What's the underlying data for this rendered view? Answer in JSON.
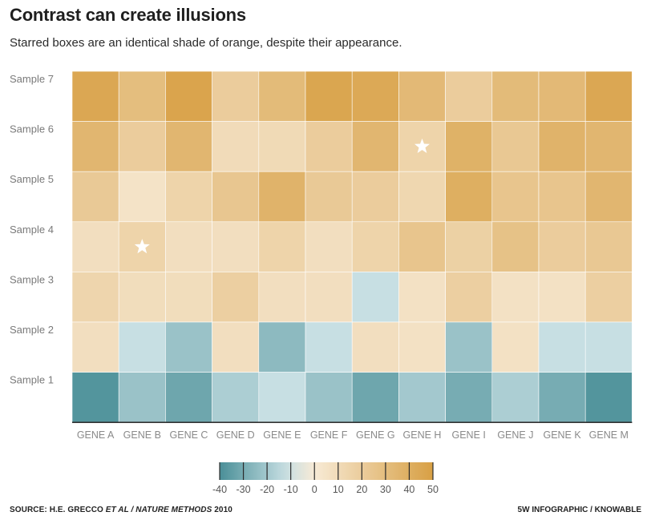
{
  "title": "Contrast can create illusions",
  "subtitle": "Starred boxes are an identical shade of orange, despite their appearance.",
  "source": {
    "prefix": "SOURCE: H.E. GRECCO ",
    "italic": "ET AL / NATURE METHODS",
    "suffix": " 2010"
  },
  "credit": "5W INFOGRAPHIC / KNOWABLE",
  "chart_data": {
    "type": "heatmap",
    "title": "Contrast can create illusions",
    "x_categories": [
      "GENE A",
      "GENE B",
      "GENE C",
      "GENE D",
      "GENE E",
      "GENE F",
      "GENE G",
      "GENE H",
      "GENE I",
      "GENE J",
      "GENE K",
      "GENE M"
    ],
    "y_categories": [
      "Sample 7",
      "Sample 6",
      "Sample 5",
      "Sample 4",
      "Sample 3",
      "Sample 2",
      "Sample 1"
    ],
    "values": [
      [
        45,
        30,
        47,
        20,
        32,
        46,
        44,
        33,
        20,
        32,
        33,
        45
      ],
      [
        35,
        20,
        35,
        10,
        11,
        20,
        35,
        15,
        38,
        23,
        37,
        35
      ],
      [
        22,
        5,
        15,
        24,
        37,
        22,
        20,
        13,
        40,
        25,
        25,
        35
      ],
      [
        8,
        15,
        8,
        8,
        15,
        8,
        15,
        25,
        17,
        27,
        20,
        23
      ],
      [
        14,
        9,
        9,
        18,
        8,
        8,
        -12,
        6,
        18,
        6,
        6,
        18
      ],
      [
        8,
        -12,
        -22,
        8,
        -25,
        -12,
        8,
        6,
        -22,
        6,
        -12,
        -12
      ],
      [
        -38,
        -22,
        -32,
        -18,
        -12,
        -22,
        -32,
        -20,
        -30,
        -18,
        -30,
        -38
      ]
    ],
    "starred_cells": [
      {
        "sample": "Sample 6",
        "gene": "GENE H",
        "value": 15
      },
      {
        "sample": "Sample 4",
        "gene": "GENE B",
        "value": 15
      }
    ],
    "colorbar": {
      "min": -40,
      "max": 50,
      "ticks": [
        -40,
        -30,
        -20,
        -10,
        0,
        10,
        20,
        30,
        40,
        50
      ],
      "tick_labels": [
        "-40",
        "-30",
        "-20",
        "-10",
        "0",
        "10",
        "20",
        "30",
        "40",
        "50"
      ]
    },
    "colors": {
      "low": "#4a8f98",
      "mid_cool": "#c7dfe3",
      "neutral": "#f7ead6",
      "high": "#d8a044",
      "star": "#ffffff",
      "cell_border": "#ffffff",
      "axis": "#333333",
      "label": "#8a8a8a"
    }
  }
}
